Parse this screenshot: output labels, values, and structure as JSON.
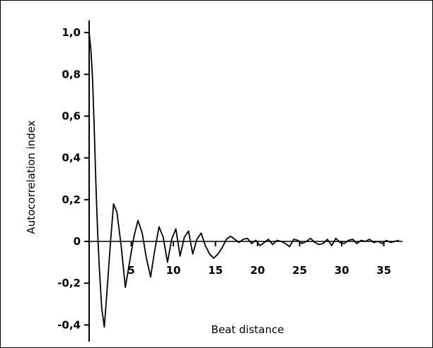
{
  "chart_data": {
    "type": "line",
    "xlabel": "Beat distance",
    "ylabel": "Autocorrelation index",
    "xlim": [
      0,
      37
    ],
    "ylim": [
      -0.45,
      1.05
    ],
    "x_ticks": [
      5,
      10,
      15,
      20,
      25,
      30,
      35
    ],
    "x_tick_labels": [
      "5",
      "10",
      "15",
      "20",
      "25",
      "30",
      "35"
    ],
    "y_ticks": [
      1.0,
      0.8,
      0.6,
      0.4,
      0.2,
      0,
      -0.2,
      -0.4
    ],
    "y_tick_labels": [
      "1,0",
      "0,8",
      "0,6",
      "0,4",
      "0,2",
      "0",
      "-0,2",
      "-0,4"
    ],
    "grid": false,
    "legend": "none",
    "line_color": "#000000",
    "series": [
      {
        "x": [
          0,
          0.2,
          0.4,
          0.6,
          0.8,
          1.0,
          1.2,
          1.5,
          1.8,
          2.1,
          2.5,
          2.9,
          3.3,
          3.8,
          4.3,
          4.8,
          5.3,
          5.8,
          6.3,
          6.8,
          7.3,
          7.8,
          8.3,
          8.8,
          9.3,
          9.8,
          10.3,
          10.8,
          11.3,
          11.8,
          12.3,
          12.8,
          13.3,
          13.8,
          14.3,
          14.8,
          15.3,
          15.8,
          16.3,
          16.8,
          17.3,
          17.8,
          18.3,
          18.8,
          19.3,
          19.8,
          20.3,
          20.8,
          21.3,
          21.8,
          22.3,
          22.8,
          23.3,
          23.8,
          24.3,
          24.8,
          25.3,
          25.8,
          26.3,
          26.8,
          27.3,
          27.8,
          28.3,
          28.8,
          29.3,
          29.8,
          30.3,
          30.8,
          31.3,
          31.8,
          32.3,
          32.8,
          33.3,
          33.8,
          34.3,
          34.8,
          35.3,
          35.8,
          36.3,
          36.8
        ],
        "values": [
          1.0,
          0.92,
          0.78,
          0.55,
          0.28,
          0.05,
          -0.12,
          -0.32,
          -0.41,
          -0.25,
          -0.02,
          0.18,
          0.14,
          -0.02,
          -0.22,
          -0.1,
          0.02,
          0.1,
          0.04,
          -0.08,
          -0.17,
          -0.04,
          0.07,
          0.02,
          -0.1,
          0.01,
          0.06,
          -0.07,
          0.02,
          0.05,
          -0.06,
          0.01,
          0.04,
          -0.02,
          -0.06,
          -0.08,
          -0.06,
          -0.03,
          0.01,
          0.025,
          0.01,
          -0.005,
          0.01,
          0.015,
          -0.01,
          0.005,
          -0.02,
          -0.005,
          0.01,
          -0.015,
          0.005,
          0.0,
          -0.01,
          -0.025,
          0.01,
          0.005,
          -0.01,
          0.0,
          0.015,
          -0.005,
          -0.015,
          -0.01,
          0.01,
          -0.02,
          0.015,
          -0.005,
          -0.01,
          0.005,
          0.01,
          -0.01,
          0.005,
          0.0,
          0.01,
          -0.005,
          0.0,
          -0.01,
          0.005,
          -0.005,
          0.0,
          0.005
        ]
      }
    ]
  }
}
